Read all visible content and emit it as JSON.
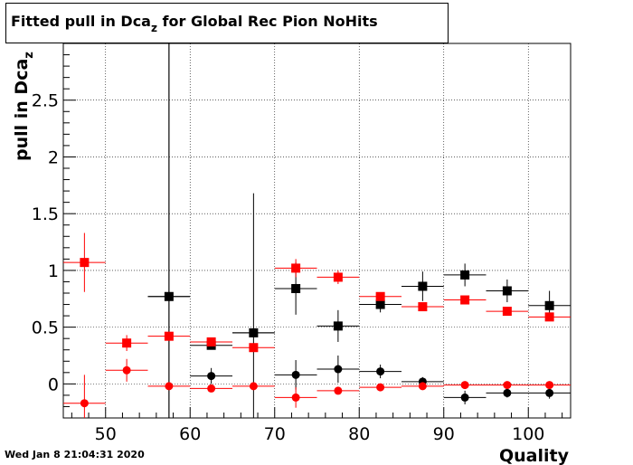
{
  "title": {
    "prefix": "Fitted pull in Dca",
    "subscript": "z",
    "suffix": " for Global Rec Pion NoHits"
  },
  "timestamp": "Wed Jan  8 21:04:31 2020",
  "chart_data": {
    "type": "scatter",
    "xlabel": "Quality",
    "ylabel_main": "pull in Dca",
    "ylabel_sub": "z",
    "xlim": [
      45,
      105
    ],
    "ylim": [
      -0.3,
      3.0
    ],
    "x_ticks": [
      50,
      60,
      70,
      80,
      90,
      100
    ],
    "y_ticks": [
      0,
      0.5,
      1,
      1.5,
      2,
      2.5
    ],
    "y_tick_labels": [
      "0",
      "0.5",
      "1",
      "1.5",
      "2",
      "2.5"
    ],
    "grid": true,
    "bin_half_width": 2.5,
    "series": [
      {
        "color": "#000000",
        "marker": "square",
        "points": [
          {
            "x": 57.5,
            "y": 0.77,
            "err": 2.3
          },
          {
            "x": 62.5,
            "y": 0.34,
            "err": 0.03
          },
          {
            "x": 67.5,
            "y": 0.45,
            "err": 0.02
          },
          {
            "x": 72.5,
            "y": 0.84,
            "err": 0.23
          },
          {
            "x": 77.5,
            "y": 0.51,
            "err": 0.14
          },
          {
            "x": 82.5,
            "y": 0.7,
            "err": 0.07
          },
          {
            "x": 87.5,
            "y": 0.86,
            "err": 0.13
          },
          {
            "x": 92.5,
            "y": 0.96,
            "err": 0.1
          },
          {
            "x": 97.5,
            "y": 0.82,
            "err": 0.1
          },
          {
            "x": 102.5,
            "y": 0.69,
            "err": 0.13
          }
        ]
      },
      {
        "color": "#000000",
        "marker": "circle",
        "points": [
          {
            "x": 57.5,
            "y": 0.77,
            "err": 2.3
          },
          {
            "x": 62.5,
            "y": 0.07,
            "err": 0.07
          },
          {
            "x": 67.5,
            "y": 0.45,
            "err": 1.23
          },
          {
            "x": 72.5,
            "y": 0.08,
            "err": 0.13
          },
          {
            "x": 77.5,
            "y": 0.13,
            "err": 0.12
          },
          {
            "x": 82.5,
            "y": 0.11,
            "err": 0.06
          },
          {
            "x": 87.5,
            "y": 0.02,
            "err": 0.04
          },
          {
            "x": 92.5,
            "y": -0.12,
            "err": 0.06
          },
          {
            "x": 97.5,
            "y": -0.08,
            "err": 0.04
          },
          {
            "x": 102.5,
            "y": -0.08,
            "err": 0.05
          }
        ]
      },
      {
        "color": "#ff0000",
        "marker": "square",
        "points": [
          {
            "x": 47.5,
            "y": 1.07,
            "err": 0.26
          },
          {
            "x": 52.5,
            "y": 0.36,
            "err": 0.07
          },
          {
            "x": 57.5,
            "y": 0.42,
            "err": 0.04
          },
          {
            "x": 62.5,
            "y": 0.37,
            "err": 0.03
          },
          {
            "x": 67.5,
            "y": 0.32,
            "err": 0.02
          },
          {
            "x": 72.5,
            "y": 1.02,
            "err": 0.08
          },
          {
            "x": 77.5,
            "y": 0.94,
            "err": 0.06
          },
          {
            "x": 82.5,
            "y": 0.77,
            "err": 0.03
          },
          {
            "x": 87.5,
            "y": 0.68,
            "err": 0.02
          },
          {
            "x": 92.5,
            "y": 0.74,
            "err": 0.02
          },
          {
            "x": 97.5,
            "y": 0.64,
            "err": 0.02
          },
          {
            "x": 102.5,
            "y": 0.59,
            "err": 0.02
          }
        ]
      },
      {
        "color": "#ff0000",
        "marker": "circle",
        "points": [
          {
            "x": 47.5,
            "y": -0.17,
            "err": 0.25
          },
          {
            "x": 52.5,
            "y": 0.12,
            "err": 0.1
          },
          {
            "x": 57.5,
            "y": -0.02,
            "err": 0.03
          },
          {
            "x": 62.5,
            "y": -0.04,
            "err": 0.02
          },
          {
            "x": 67.5,
            "y": -0.02,
            "err": 0.02
          },
          {
            "x": 72.5,
            "y": -0.12,
            "err": 0.09
          },
          {
            "x": 77.5,
            "y": -0.06,
            "err": 0.03
          },
          {
            "x": 82.5,
            "y": -0.03,
            "err": 0.02
          },
          {
            "x": 87.5,
            "y": -0.02,
            "err": 0.02
          },
          {
            "x": 92.5,
            "y": -0.01,
            "err": 0.01
          },
          {
            "x": 97.5,
            "y": -0.01,
            "err": 0.01
          },
          {
            "x": 102.5,
            "y": -0.01,
            "err": 0.01
          }
        ]
      }
    ]
  }
}
